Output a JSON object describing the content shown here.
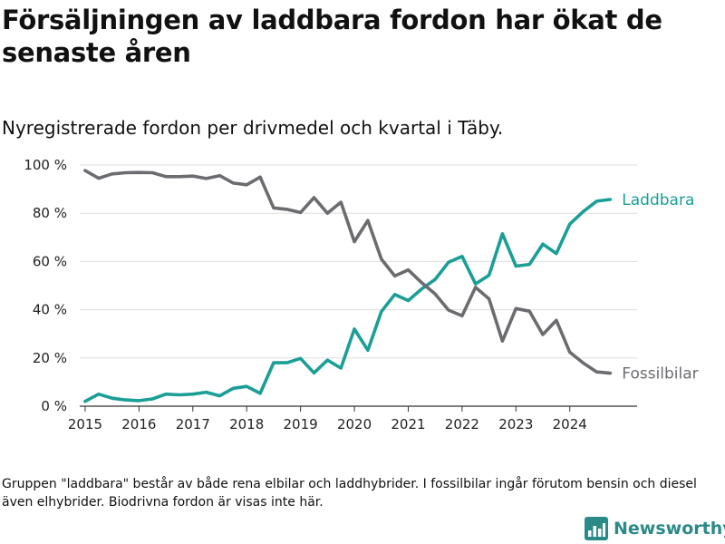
{
  "title": "Försäljningen av laddbara fordon har ökat de senaste åren",
  "subtitle": "Nyregistrerade fordon per drivmedel och kvartal i Täby.",
  "footnote": "Gruppen \"laddbara\" består av både rena elbilar och laddhybrider. I fossilbilar ingår förutom bensin och diesel även elhybrider. Biodrivna fordon är visas inte här.",
  "brand": {
    "name": "Newsworthy",
    "color": "#2a8a88"
  },
  "chart_data": {
    "type": "line",
    "title": "Nyregistrerade fordon per drivmedel och kvartal i Täby.",
    "xlabel": "",
    "ylabel": "",
    "xlim": [
      2014.9,
      2025.25
    ],
    "ylim": [
      0,
      100
    ],
    "x_ticks": [
      2015,
      2016,
      2017,
      2018,
      2019,
      2020,
      2021,
      2022,
      2023,
      2024
    ],
    "x_tick_labels": [
      "2015",
      "2016",
      "2017",
      "2018",
      "2019",
      "2020",
      "2021",
      "2022",
      "2023",
      "2024"
    ],
    "y_ticks": [
      0,
      20,
      40,
      60,
      80,
      100
    ],
    "y_tick_labels": [
      "0 %",
      "20 %",
      "40 %",
      "60 %",
      "80 %",
      "100 %"
    ],
    "grid": true,
    "x": [
      2015.0,
      2015.25,
      2015.5,
      2015.75,
      2016.0,
      2016.25,
      2016.5,
      2016.75,
      2017.0,
      2017.25,
      2017.5,
      2017.75,
      2018.0,
      2018.25,
      2018.5,
      2018.75,
      2019.0,
      2019.25,
      2019.5,
      2019.75,
      2020.0,
      2020.25,
      2020.5,
      2020.75,
      2021.0,
      2021.25,
      2021.5,
      2021.75,
      2022.0,
      2022.25,
      2022.5,
      2022.75,
      2023.0,
      2023.25,
      2023.5,
      2023.75,
      2024.0,
      2024.25,
      2024.5,
      2024.75
    ],
    "series": [
      {
        "name": "Laddbara",
        "color": "#1a9e96",
        "values": [
          2,
          5,
          3.3,
          2.6,
          2.3,
          3,
          5,
          4.7,
          5,
          5.8,
          4.3,
          7.4,
          8.2,
          5.3,
          18,
          18,
          19.8,
          13.8,
          19.1,
          15.8,
          32,
          23.2,
          39.2,
          46.3,
          43.8,
          48.6,
          52.6,
          59.7,
          62.1,
          50.7,
          54.3,
          71.5,
          58.1,
          58.8,
          67.2,
          63.3,
          75.5,
          80.7,
          85,
          85.7
        ]
      },
      {
        "name": "Fossilbilar",
        "color": "#6d6b70",
        "values": [
          97.7,
          94.5,
          96.3,
          96.8,
          96.9,
          96.8,
          95.2,
          95.2,
          95.4,
          94.4,
          95.6,
          92.5,
          91.8,
          95,
          82.2,
          81.6,
          80.3,
          86.5,
          80,
          84.6,
          68.2,
          77,
          61,
          54,
          56.5,
          51.2,
          46.5,
          39.8,
          37.5,
          49.3,
          44.5,
          27,
          40.5,
          39.4,
          29.7,
          35.6,
          22.4,
          17.9,
          14.2,
          13.7
        ]
      }
    ]
  }
}
